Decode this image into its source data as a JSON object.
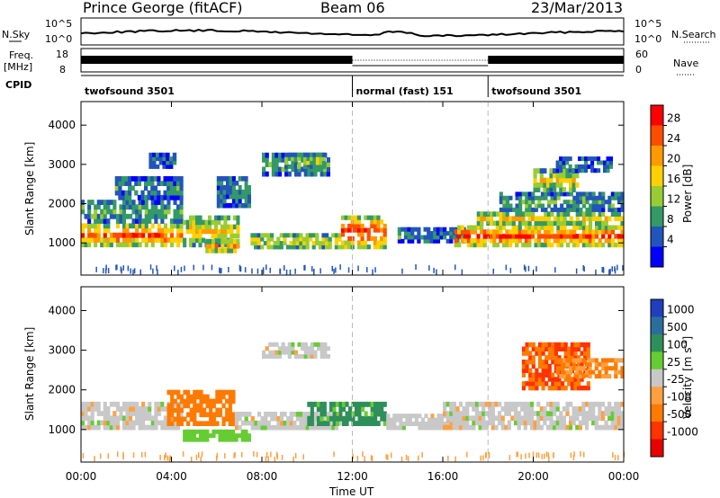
{
  "header": {
    "station": "Prince George (fitACF)",
    "beam": "Beam 06",
    "date": "23/Mar/2013"
  },
  "strip": {
    "nsky_label": "N.Sky",
    "nsky_ticks": [
      "10^5",
      "10^0"
    ],
    "nsearch_label": "N.Search",
    "nsearch_ticks": [
      "10^5",
      "10^0"
    ],
    "freq_label": "Freq.",
    "freq_unit": "[MHz]",
    "freq_ticks": [
      "18",
      "8"
    ],
    "nave_label": "Nave",
    "nave_ticks": [
      "60",
      "0"
    ],
    "cpid_label": "CPID",
    "cpid_segments": [
      {
        "name": "twofsound 3501",
        "start_hr": 0,
        "end_hr": 12
      },
      {
        "name": "normal (fast) 151",
        "start_hr": 12,
        "end_hr": 18
      },
      {
        "name": "twofsound 3501",
        "start_hr": 18,
        "end_hr": 24
      }
    ]
  },
  "panels": {
    "y_label": "Slant Range [km]",
    "y_ticks": [
      "4000",
      "3000",
      "2000",
      "1000"
    ],
    "x_label": "Time UT",
    "x_ticks": [
      "00:00",
      "04:00",
      "08:00",
      "12:00",
      "16:00",
      "20:00",
      "00:00"
    ]
  },
  "power_scale": {
    "label": "Power [dB]",
    "ticks": [
      "28",
      "24",
      "20",
      "16",
      "12",
      "8",
      "4"
    ],
    "colors": [
      "#ff0000",
      "#ff4d00",
      "#ff9900",
      "#ffd000",
      "#99cc33",
      "#339966",
      "#2255bb",
      "#0000ff"
    ]
  },
  "velocity_scale": {
    "label_main": "Velocity",
    "label_unit": "[m s",
    "label_exp": "-1",
    "label_close": "]",
    "ticks": [
      "1000",
      "500",
      "100",
      "25",
      "-25",
      "-100",
      "-500",
      "-1000"
    ],
    "colors": [
      "#1f3fbf",
      "#2b6e9e",
      "#2f8f5a",
      "#66cc33",
      "#c8c8c8",
      "#ffa040",
      "#ff7a00",
      "#ff3300",
      "#e60000"
    ]
  },
  "chart_data": {
    "type": "heatmap",
    "title": "Prince George (fitACF)",
    "subtitle": "Beam 06",
    "date": "23/Mar/2013",
    "xlabel": "Time UT",
    "ylabel": "Slant Range [km]",
    "x_ticks": [
      "00:00",
      "04:00",
      "08:00",
      "12:00",
      "16:00",
      "20:00",
      "00:00"
    ],
    "x_range_hr": [
      0,
      24
    ],
    "y_ticks": [
      1000,
      2000,
      3000,
      4000
    ],
    "y_range_km": [
      180,
      4600
    ],
    "panels": [
      {
        "name": "Power",
        "unit": "dB",
        "color_scale_ticks": [
          4,
          8,
          12,
          16,
          20,
          24,
          28
        ],
        "bands": [
          {
            "t0": 0.0,
            "t1": 4.5,
            "r0": 900,
            "r1": 1500,
            "level": 0.85
          },
          {
            "t0": 0.0,
            "t1": 4.5,
            "r0": 1500,
            "r1": 2100,
            "level": 0.35
          },
          {
            "t0": 1.5,
            "t1": 4.5,
            "r0": 2100,
            "r1": 2700,
            "level": 0.25
          },
          {
            "t0": 3.0,
            "t1": 4.2,
            "r0": 2900,
            "r1": 3300,
            "level": 0.2
          },
          {
            "t0": 4.5,
            "t1": 7.0,
            "r0": 900,
            "r1": 1700,
            "level": 0.6
          },
          {
            "t0": 5.5,
            "t1": 7.0,
            "r0": 750,
            "r1": 1100,
            "level": 0.7
          },
          {
            "t0": 6.0,
            "t1": 7.5,
            "r0": 1900,
            "r1": 2700,
            "level": 0.25
          },
          {
            "t0": 7.5,
            "t1": 11.5,
            "r0": 850,
            "r1": 1250,
            "level": 0.55
          },
          {
            "t0": 8.0,
            "t1": 11.0,
            "r0": 2700,
            "r1": 3300,
            "level": 0.3
          },
          {
            "t0": 9.0,
            "t1": 10.8,
            "r0": 2900,
            "r1": 3300,
            "level": 0.45
          },
          {
            "t0": 11.5,
            "t1": 13.5,
            "r0": 850,
            "r1": 1700,
            "level": 0.95
          },
          {
            "t0": 14.0,
            "t1": 17.0,
            "r0": 1000,
            "r1": 1400,
            "level": 0.25
          },
          {
            "t0": 16.5,
            "t1": 24.0,
            "r0": 900,
            "r1": 1450,
            "level": 0.9
          },
          {
            "t0": 17.5,
            "t1": 24.0,
            "r0": 1450,
            "r1": 1800,
            "level": 0.6
          },
          {
            "t0": 18.5,
            "t1": 24.0,
            "r0": 1800,
            "r1": 2300,
            "level": 0.3
          },
          {
            "t0": 20.0,
            "t1": 22.0,
            "r0": 2300,
            "r1": 2900,
            "level": 0.6
          },
          {
            "t0": 21.0,
            "t1": 23.5,
            "r0": 2800,
            "r1": 3200,
            "level": 0.2
          }
        ]
      },
      {
        "name": "Velocity",
        "unit": "m s-1",
        "color_scale_ticks": [
          1000,
          500,
          100,
          25,
          -25,
          -100,
          -500,
          -1000
        ],
        "bands": [
          {
            "t0": 0.0,
            "t1": 4.5,
            "r0": 1000,
            "r1": 1700,
            "value": 0
          },
          {
            "t0": 3.8,
            "t1": 6.8,
            "r0": 1100,
            "r1": 2000,
            "value": -150
          },
          {
            "t0": 4.5,
            "t1": 7.5,
            "r0": 700,
            "r1": 1000,
            "value": 60
          },
          {
            "t0": 6.8,
            "t1": 11.5,
            "r0": 1000,
            "r1": 1450,
            "value": 0
          },
          {
            "t0": 8.0,
            "t1": 11.0,
            "r0": 2800,
            "r1": 3200,
            "value": 0
          },
          {
            "t0": 10.0,
            "t1": 13.5,
            "r0": 1100,
            "r1": 1700,
            "value": 120
          },
          {
            "t0": 13.5,
            "t1": 17.0,
            "r0": 1000,
            "r1": 1400,
            "value": 0
          },
          {
            "t0": 16.0,
            "t1": 24.0,
            "r0": 1000,
            "r1": 1700,
            "value": 0
          },
          {
            "t0": 19.5,
            "t1": 22.5,
            "r0": 2000,
            "r1": 3200,
            "value": -500
          },
          {
            "t0": 21.0,
            "t1": 24.0,
            "r0": 2300,
            "r1": 2800,
            "value": -100
          }
        ]
      }
    ]
  }
}
